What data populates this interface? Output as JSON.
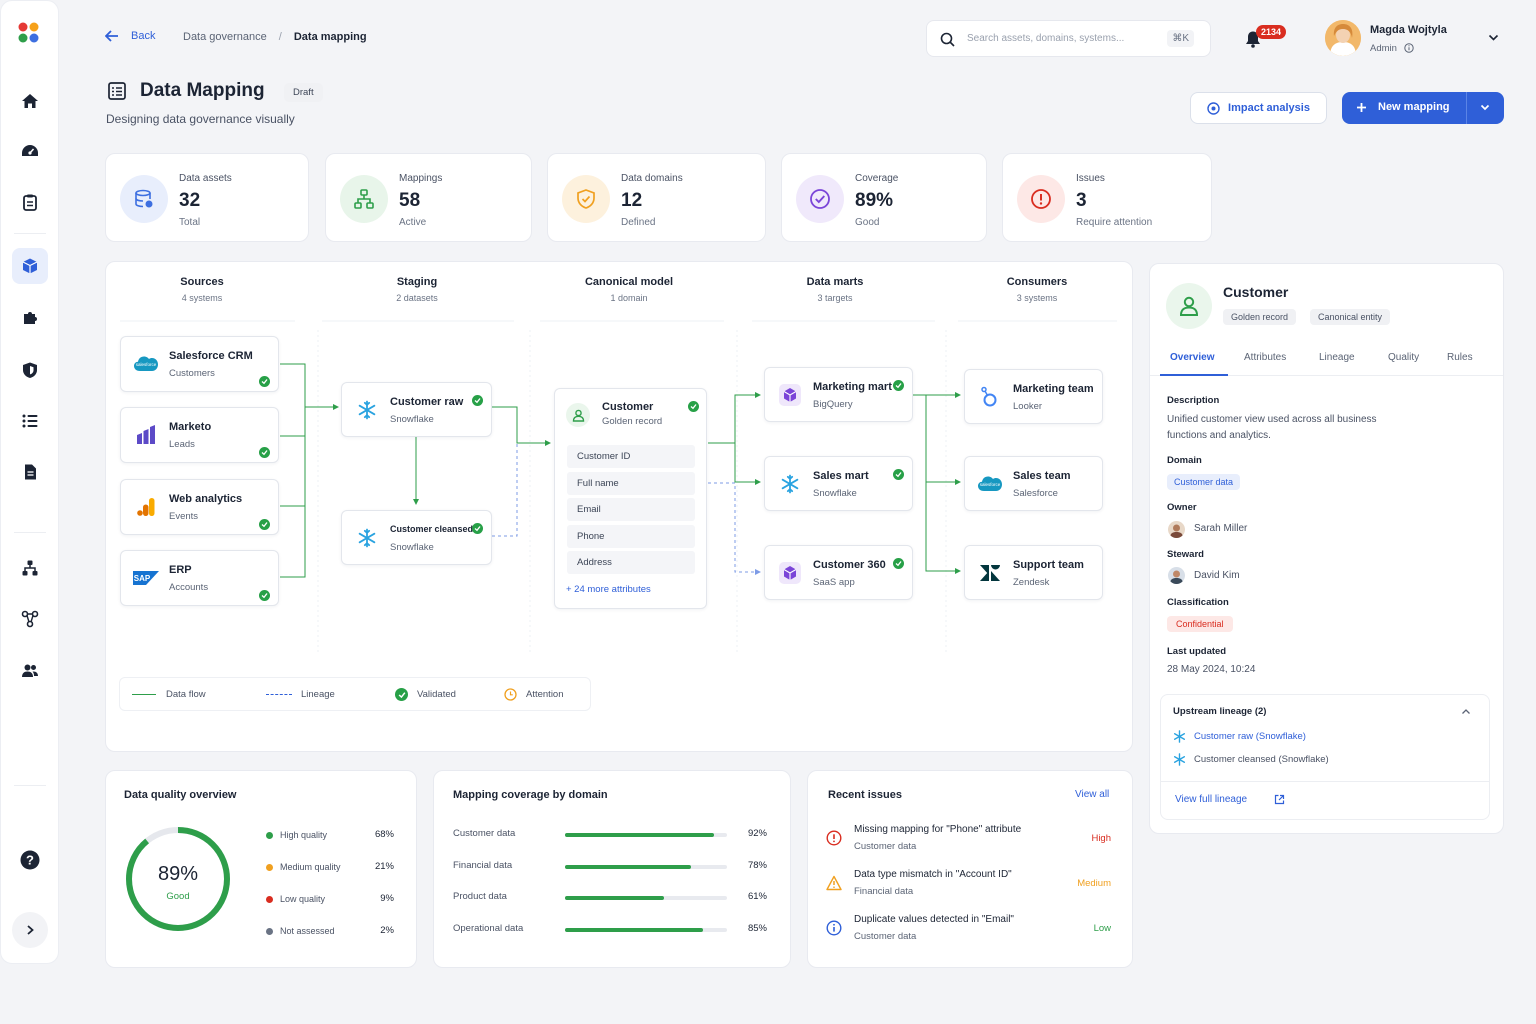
{
  "header": {
    "back_label": "Back",
    "breadcrumb_parent": "Data governance",
    "breadcrumb_sep": "/",
    "breadcrumb_current": "Data mapping",
    "search_placeholder": "Search assets, domains, systems...",
    "search_shortcut": "⌘K",
    "notification_count": "2134",
    "user_name": "Magda Wojtyla",
    "user_role": "Admin"
  },
  "page": {
    "title": "Data Mapping",
    "status_badge": "Draft",
    "subtitle": "Designing data governance visually",
    "impact_button": "Impact analysis",
    "new_button": "New mapping"
  },
  "stats": [
    {
      "label": "Data assets",
      "value": "32",
      "sub": "Total",
      "icon": "database-icon",
      "color": "#3d6fe0"
    },
    {
      "label": "Mappings",
      "value": "58",
      "sub": "Active",
      "icon": "hierarchy-icon",
      "color": "#2e9e4a"
    },
    {
      "label": "Data domains",
      "value": "12",
      "sub": "Defined",
      "icon": "shield-icon",
      "color": "#f0a020"
    },
    {
      "label": "Coverage",
      "value": "89%",
      "sub": "Good",
      "icon": "check-circle-icon",
      "color": "#7b45d8"
    },
    {
      "label": "Issues",
      "value": "3",
      "sub": "Require attention",
      "icon": "alert-icon",
      "color": "#d92d20"
    }
  ],
  "flow": {
    "columns": [
      {
        "title": "Sources",
        "sub": "4 systems"
      },
      {
        "title": "Staging",
        "sub": "2 datasets"
      },
      {
        "title": "Canonical model",
        "sub": "1 domain"
      },
      {
        "title": "Data marts",
        "sub": "3 targets"
      },
      {
        "title": "Consumers",
        "sub": "3 systems"
      }
    ],
    "sources": [
      {
        "name": "Salesforce CRM",
        "sub": "Customers"
      },
      {
        "name": "Marketo",
        "sub": "Leads"
      },
      {
        "name": "Web analytics",
        "sub": "Events"
      },
      {
        "name": "ERP",
        "sub": "Accounts"
      }
    ],
    "staging": [
      {
        "name": "Customer raw",
        "sub": "Snowflake"
      },
      {
        "name": "Customer cleansed",
        "sub": "Snowflake"
      }
    ],
    "canonical": {
      "name": "Customer",
      "sub": "Golden record",
      "attributes": [
        "Customer ID",
        "Full name",
        "Email",
        "Phone",
        "Address"
      ],
      "more": "+ 24 more attributes"
    },
    "marts": [
      {
        "name": "Marketing mart",
        "sub": "BigQuery"
      },
      {
        "name": "Sales mart",
        "sub": "Snowflake"
      },
      {
        "name": "Customer 360",
        "sub": "SaaS app"
      }
    ],
    "consumers": [
      {
        "name": "Marketing team",
        "sub": "Looker"
      },
      {
        "name": "Sales team",
        "sub": "Salesforce"
      },
      {
        "name": "Support team",
        "sub": "Zendesk"
      }
    ],
    "legend": {
      "flow": "Data flow",
      "lineage": "Lineage",
      "validated": "Validated",
      "attention": "Attention"
    }
  },
  "detail": {
    "title": "Customer",
    "tags": [
      "Golden record",
      "Canonical entity"
    ],
    "tabs": [
      "Overview",
      "Attributes",
      "Lineage",
      "Quality",
      "Rules"
    ],
    "description_label": "Description",
    "description": "Unified customer view used across all business functions and analytics.",
    "domain_label": "Domain",
    "domain": "Customer data",
    "owner_label": "Owner",
    "owner": "Sarah Miller",
    "steward_label": "Steward",
    "steward": "David Kim",
    "classification_label": "Classification",
    "classification": "Confidential",
    "updated_label": "Last updated",
    "updated": "28 May 2024, 10:24",
    "upstream_title": "Upstream lineage (2)",
    "upstream": [
      "Customer raw (Snowflake)",
      "Customer cleansed (Snowflake)"
    ],
    "lineage_link": "View full lineage"
  },
  "quality": {
    "title": "Data quality overview",
    "score": "89%",
    "score_label": "Good",
    "score_value": 0.89,
    "items": [
      {
        "label": "High quality",
        "value": "68%",
        "color": "#2e9e4a"
      },
      {
        "label": "Medium quality",
        "value": "21%",
        "color": "#f0a020"
      },
      {
        "label": "Low quality",
        "value": "9%",
        "color": "#d92d20"
      },
      {
        "label": "Not assessed",
        "value": "2%",
        "color": "#6a7384"
      }
    ]
  },
  "coverage": {
    "title": "Mapping coverage by domain",
    "items": [
      {
        "label": "Customer data",
        "value": "92%",
        "pct": 0.92
      },
      {
        "label": "Financial data",
        "value": "78%",
        "pct": 0.78
      },
      {
        "label": "Product data",
        "value": "61%",
        "pct": 0.61
      },
      {
        "label": "Operational data",
        "value": "85%",
        "pct": 0.85
      }
    ]
  },
  "issues": {
    "title": "Recent issues",
    "view_all": "View all",
    "items": [
      {
        "title": "Missing mapping for \"Phone\" attribute",
        "sub": "Customer data",
        "severity": "High",
        "color": "#d92d20"
      },
      {
        "title": "Data type mismatch in \"Account ID\"",
        "sub": "Financial data",
        "severity": "Medium",
        "color": "#f0a020"
      },
      {
        "title": "Duplicate values detected in \"Email\"",
        "sub": "Customer data",
        "severity": "Low",
        "color": "#2e9e4a"
      }
    ]
  }
}
